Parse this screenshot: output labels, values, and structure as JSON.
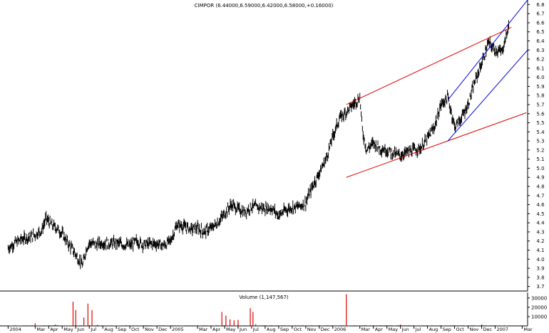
{
  "title": "CIMPOR (6.44000,6.59000,6.42000,6.58000,+0.16000)",
  "volume_title": "Volume (1,147,567)",
  "colors": {
    "price": "#000000",
    "red_channel": "#e00000",
    "blue_channel": "#0000dd",
    "volume": "#e00000",
    "axis": "#000000"
  },
  "chart_data": [
    {
      "type": "line",
      "subtype": "ohlc-bars",
      "title": "CIMPOR (6.44000,6.59000,6.42000,6.58000,+0.16000)",
      "last_bar": {
        "open": 6.44,
        "high": 6.59,
        "low": 6.42,
        "close": 6.58,
        "change": 0.16
      },
      "x_tick_labels": [
        "2004",
        "Mar",
        "Apr",
        "May",
        "Jun",
        "Jul",
        "Aug",
        "Sep",
        "Oct",
        "Nov",
        "Dec",
        "2005",
        "Mar",
        "Apr",
        "May",
        "Jun",
        "Jul",
        "Aug",
        "Sep",
        "Oct",
        "Nov",
        "Dec",
        "2006",
        "Mar",
        "Apr",
        "May",
        "Jun",
        "Jul",
        "Aug",
        "Sep",
        "Oct",
        "Nov",
        "Dec",
        "2007",
        "Mar"
      ],
      "y_tick_labels": [
        "3.7",
        "3.8",
        "3.9",
        "4.0",
        "4.1",
        "4.2",
        "4.3",
        "4.4",
        "4.5",
        "4.6",
        "4.7",
        "4.8",
        "4.9",
        "5.0",
        "5.1",
        "5.2",
        "5.3",
        "5.4",
        "5.5",
        "5.6",
        "5.7",
        "5.8",
        "5.9",
        "6.0",
        "6.1",
        "6.2",
        "6.3",
        "6.4",
        "6.5",
        "6.6",
        "6.7",
        "6.8"
      ],
      "ylim": [
        3.65,
        6.85
      ],
      "xlim_months": [
        -0.6,
        38.4
      ],
      "x_month_index_note": "x = months since Jan 2004",
      "series": [
        {
          "x": [
            0,
            0.5,
            1,
            1.5,
            2,
            2.5,
            2.8,
            3.2,
            3.6,
            4,
            4.4,
            4.8,
            5.2,
            5.5,
            5.8,
            6,
            6.5,
            7,
            7.5,
            8,
            8.5,
            9,
            9.5,
            10,
            10.5,
            11,
            11.5,
            12,
            12.5,
            13,
            13.5,
            14,
            14.5,
            15,
            15.5,
            16,
            16.5,
            17,
            17.5,
            18,
            18.5,
            19,
            19.5,
            20,
            20.5,
            21,
            21.5,
            22,
            22.5,
            23,
            23.5,
            24,
            24.5,
            25,
            25.5,
            26,
            26.2,
            26.5,
            27,
            27.5,
            28,
            28.5,
            29,
            29.5,
            30,
            30.5,
            31,
            31.5,
            32,
            32.5,
            33,
            33.5,
            34,
            34.5,
            35,
            35.5,
            36,
            36.5,
            37
          ],
          "values": [
            4.12,
            4.18,
            4.22,
            4.24,
            4.27,
            4.32,
            4.45,
            4.38,
            4.34,
            4.28,
            4.18,
            4.1,
            4.0,
            3.93,
            4.12,
            4.18,
            4.16,
            4.18,
            4.17,
            4.18,
            4.16,
            4.15,
            4.2,
            4.16,
            4.17,
            4.17,
            4.15,
            4.2,
            4.38,
            4.36,
            4.33,
            4.34,
            4.3,
            4.34,
            4.4,
            4.5,
            4.6,
            4.55,
            4.52,
            4.58,
            4.57,
            4.56,
            4.56,
            4.48,
            4.54,
            4.57,
            4.58,
            4.62,
            4.8,
            4.95,
            5.1,
            5.35,
            5.55,
            5.62,
            5.7,
            5.78,
            5.4,
            5.2,
            5.28,
            5.22,
            5.2,
            5.16,
            5.14,
            5.18,
            5.2,
            5.22,
            5.33,
            5.45,
            5.7,
            5.78,
            5.46,
            5.55,
            5.7,
            5.95,
            6.15,
            6.38,
            6.3,
            6.28,
            6.56
          ]
        }
      ],
      "trend_lines": [
        {
          "name": "red-upper",
          "color": "red",
          "x": [
            25.0,
            37.2
          ],
          "y": [
            5.7,
            6.55
          ]
        },
        {
          "name": "red-lower",
          "color": "red",
          "x": [
            25.0,
            38.3
          ],
          "y": [
            4.9,
            5.61
          ]
        },
        {
          "name": "blue-upper",
          "color": "blue",
          "x": [
            32.5,
            38.4
          ],
          "y": [
            5.75,
            6.85
          ]
        },
        {
          "name": "blue-lower",
          "color": "blue",
          "x": [
            32.5,
            38.4
          ],
          "y": [
            5.3,
            6.3
          ]
        }
      ],
      "grid": false,
      "legend": "none"
    },
    {
      "type": "bar",
      "title": "Volume (1,147,567)",
      "y_tick_labels": [
        "10000",
        "20000",
        "30000"
      ],
      "ylim": [
        0,
        36000
      ],
      "spikes": [
        {
          "x": 2.0,
          "value": 2800
        },
        {
          "x": 3.5,
          "value": 1500
        },
        {
          "x": 4.8,
          "value": 26000
        },
        {
          "x": 5.0,
          "value": 17000
        },
        {
          "x": 5.6,
          "value": 9000
        },
        {
          "x": 5.9,
          "value": 24000
        },
        {
          "x": 6.2,
          "value": 17000
        },
        {
          "x": 6.6,
          "value": 1200
        },
        {
          "x": 15.8,
          "value": 15000
        },
        {
          "x": 16.1,
          "value": 11000
        },
        {
          "x": 16.4,
          "value": 7000
        },
        {
          "x": 16.7,
          "value": 6000
        },
        {
          "x": 17.0,
          "value": 6500
        },
        {
          "x": 17.9,
          "value": 19000
        },
        {
          "x": 18.1,
          "value": 15000
        },
        {
          "x": 18.3,
          "value": 1800
        },
        {
          "x": 25.0,
          "value": 34000
        },
        {
          "x": 29.0,
          "value": 1500
        },
        {
          "x": 35.0,
          "value": 1500
        }
      ],
      "baseline_value": 500
    }
  ]
}
